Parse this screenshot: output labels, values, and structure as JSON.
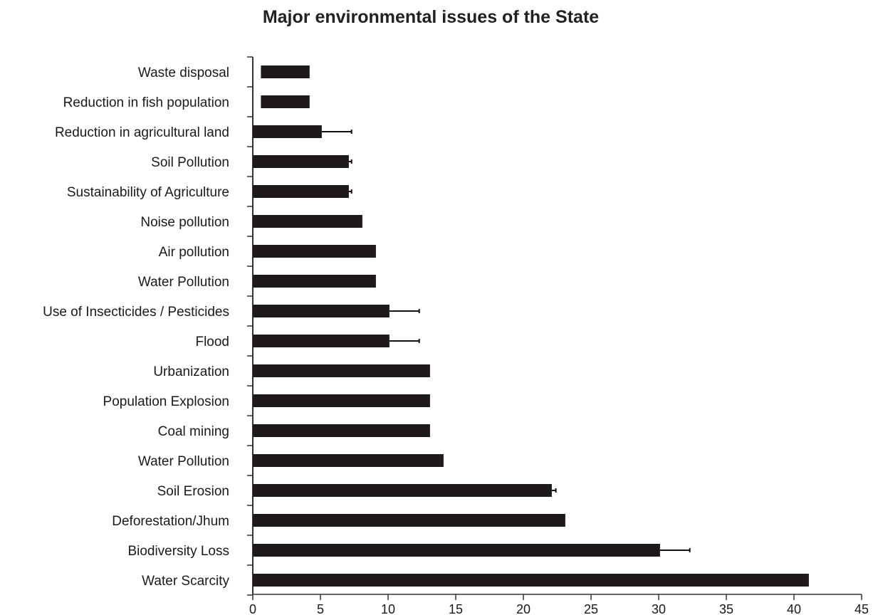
{
  "chart_data": {
    "type": "bar",
    "orientation": "horizontal",
    "title": "Major environmental issues of the State",
    "xlabel": "",
    "ylabel": "",
    "xlim": [
      0,
      45
    ],
    "x_ticks": [
      "0",
      "5",
      "10",
      "15",
      "20",
      "25",
      "30",
      "35",
      "40",
      "45"
    ],
    "grid": false,
    "bar_color": "#1e1a1a",
    "categories": [
      "Waste disposal",
      "Reduction in fish population",
      "Reduction in agricultural land",
      "Soil Pollution",
      "Sustainability of Agriculture",
      "Noise pollution",
      "Air pollution",
      "Water Pollution",
      "Use of Insecticides / Pesticides",
      "Flood",
      "Urbanization",
      "Population Explosion",
      "Coal mining",
      "Water Pollution",
      "Soil Erosion",
      "Deforestation/Jhum",
      "Biodiversity Loss",
      "Water Scarcity"
    ],
    "values": [
      4.2,
      4.2,
      5.1,
      7.1,
      7.1,
      8.1,
      9.1,
      9.1,
      10.1,
      10.1,
      13.1,
      13.1,
      13.1,
      14.1,
      22.1,
      23.1,
      30.1,
      41.1
    ],
    "bar_start": [
      0.6,
      0.6,
      0,
      0,
      0,
      0,
      0,
      0,
      0,
      0,
      0,
      0,
      0,
      0,
      0,
      0,
      0,
      0
    ],
    "error_upper": [
      null,
      null,
      7.3,
      7.3,
      7.3,
      null,
      null,
      null,
      12.3,
      12.3,
      null,
      null,
      null,
      null,
      22.4,
      null,
      32.3,
      null
    ]
  }
}
